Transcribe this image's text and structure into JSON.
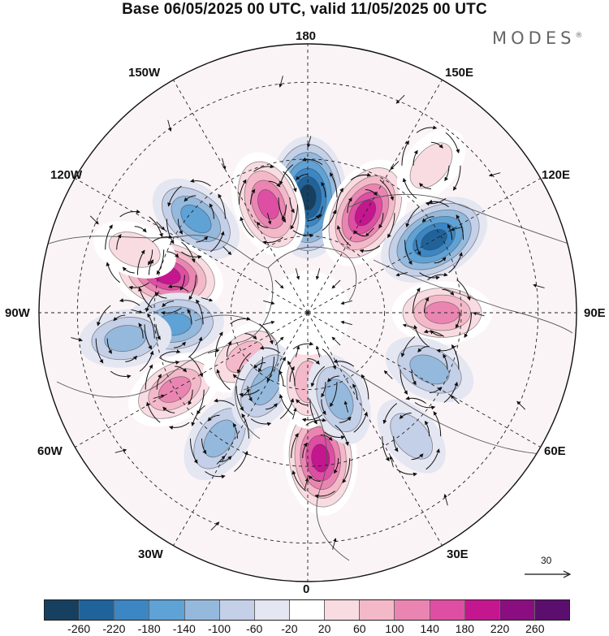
{
  "title": "Base 06/05/2025 00 UTC, valid 11/05/2025 00 UTC",
  "brand": "MODES",
  "brand_mark": "®",
  "longitude_labels": {
    "lon_180": "180",
    "lon_150W": "150W",
    "lon_150E": "150E",
    "lon_120W": "120W",
    "lon_120E": "120E",
    "lon_90W": "90W",
    "lon_90E": "90E",
    "lon_60W": "60W",
    "lon_60E": "60E",
    "lon_30W": "30W",
    "lon_30E": "30E",
    "lon_0": "0"
  },
  "reference_vector": {
    "label": "30"
  },
  "colorbar": {
    "colors": [
      "#173f5f",
      "#20639b",
      "#3c86c4",
      "#5fa2d6",
      "#94b9dd",
      "#c4d0e8",
      "#e4e6f2",
      "#ffffff",
      "#f9dce2",
      "#f4b9c9",
      "#ea85b2",
      "#de4fa3",
      "#c4168e",
      "#8a0e80",
      "#5b0e6e"
    ],
    "tick_labels": [
      "-260",
      "-220",
      "-180",
      "-140",
      "-100",
      "-60",
      "-20",
      "20",
      "60",
      "100",
      "140",
      "180",
      "220",
      "260"
    ]
  },
  "anomalies": [
    {
      "name": "low-n180",
      "lon": 180,
      "colat": 30,
      "value": -270
    },
    {
      "name": "high-150e",
      "lon": 150,
      "colat": 30,
      "value": 240
    },
    {
      "name": "high-160w",
      "lon": -160,
      "colat": 30,
      "value": 190
    },
    {
      "name": "low-120e",
      "lon": 120,
      "colat": 38,
      "value": -220
    },
    {
      "name": "low-130w",
      "lon": -130,
      "colat": 38,
      "value": -160
    },
    {
      "name": "high-105w",
      "lon": -105,
      "colat": 38,
      "value": 250
    },
    {
      "name": "low-85w",
      "lon": -85,
      "colat": 35,
      "value": -150
    },
    {
      "name": "low-82w",
      "lon": -82,
      "colat": 48,
      "value": -130
    },
    {
      "name": "high-90e",
      "lon": 90,
      "colat": 35,
      "value": 150
    },
    {
      "name": "high-60w",
      "lon": -60,
      "colat": 40,
      "value": 170
    },
    {
      "name": "high-55w",
      "lon": -55,
      "colat": 20,
      "value": 120
    },
    {
      "name": "low-65e",
      "lon": 65,
      "colat": 35,
      "value": -120
    },
    {
      "name": "low-35w",
      "lon": -35,
      "colat": 40,
      "value": -110
    },
    {
      "name": "low-30w",
      "lon": -30,
      "colat": 22,
      "value": -100
    },
    {
      "name": "high-5e",
      "lon": 5,
      "colat": 38,
      "value": 230
    },
    {
      "name": "high-0",
      "lon": 0,
      "colat": 18,
      "value": 110
    },
    {
      "name": "low-20e",
      "lon": 20,
      "colat": 24,
      "value": -100
    },
    {
      "name": "low-40e",
      "lon": 40,
      "colat": 42,
      "value": -90
    },
    {
      "name": "high-110w",
      "lon": -110,
      "colat": 48,
      "value": 60
    },
    {
      "name": "high-140e",
      "lon": 140,
      "colat": 50,
      "value": 70
    }
  ]
}
